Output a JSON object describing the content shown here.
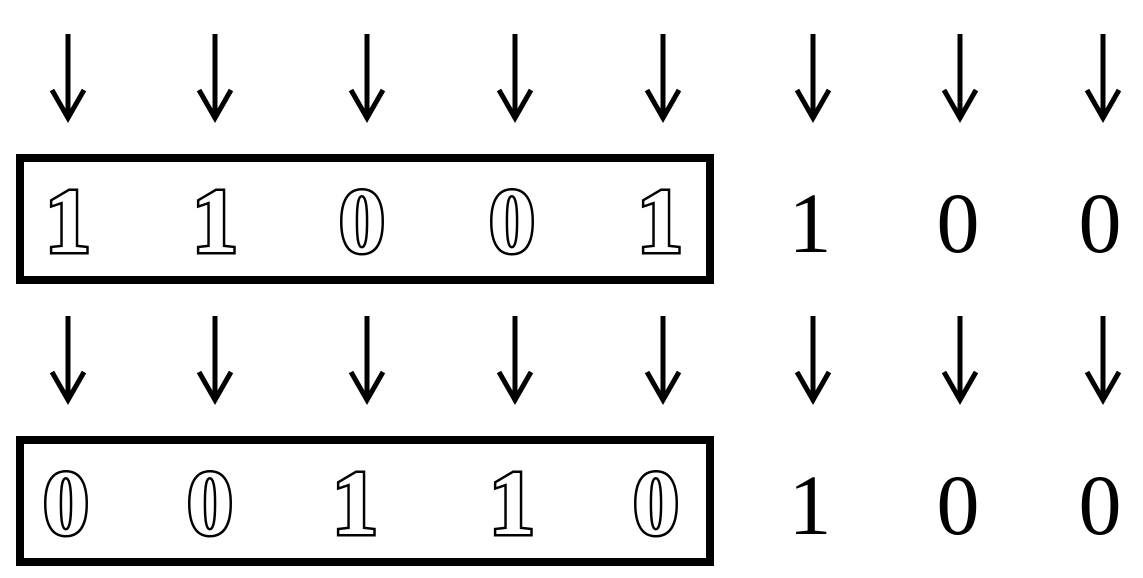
{
  "rows": [
    {
      "boxed_bits": [
        "1",
        "1",
        "0",
        "0",
        "1"
      ],
      "plain_bits": [
        "1",
        "0",
        "0"
      ]
    },
    {
      "boxed_bits": [
        "0",
        "0",
        "1",
        "1",
        "0"
      ],
      "plain_bits": [
        "1",
        "0",
        "0"
      ]
    }
  ],
  "colors": {
    "ink": "#000000",
    "background": "#ffffff"
  },
  "icons": {
    "arrow": "down-arrow-icon"
  }
}
